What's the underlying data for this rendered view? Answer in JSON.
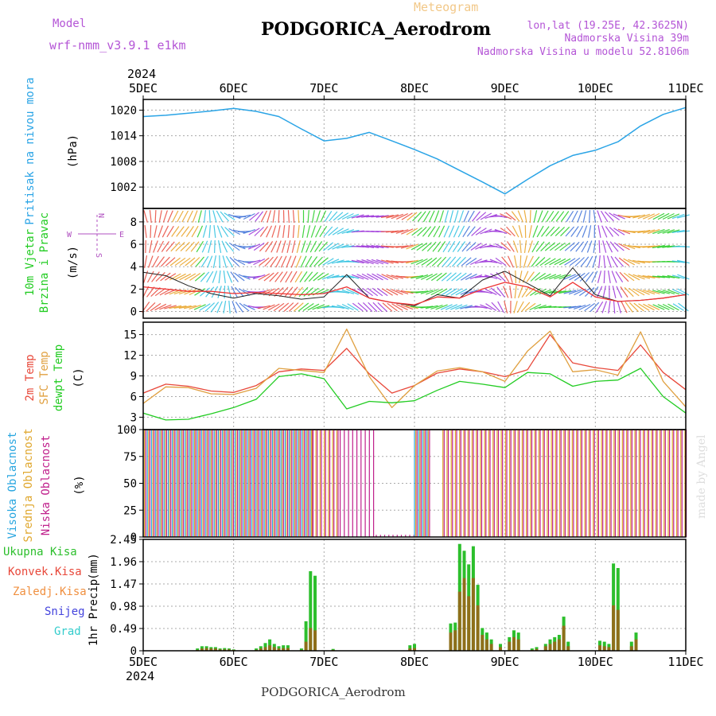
{
  "header": {
    "model_label": "Model",
    "model_name": "wrf-nmm_v3.9.1 e1km",
    "title": "Meteogram",
    "station": "PODGORICA_Aerodrom",
    "location": "lon,lat (19.25E, 42.3625N)",
    "altitude": "Nadmorska Visina 39m",
    "model_altitude": "Nadmorska Visina u modelu 52.8106m",
    "footer_station": "PODGORICA_Aerodrom",
    "credit": "made by Angel"
  },
  "colors": {
    "pressure": "#2aa4e6",
    "temp2m": "#e8483a",
    "sfc": "#e0a040",
    "dewpt": "#22cc22",
    "wind_speed": "#222222",
    "wind_mean": "#ee3333",
    "high_cloud": "#29a6e0",
    "mid_cloud": "#e0a830",
    "low_cloud": "#c0208c",
    "total_precip": "#2cbf2c",
    "conv_precip": "#a06018",
    "purple": "#b455d6",
    "compass": "#b050c0"
  },
  "chart_data": [
    {
      "type": "line",
      "name": "pressure",
      "ylabel": "Pritisak na nivou mora",
      "unit": "(hPa)",
      "yticks": [
        1002,
        1008,
        1014,
        1020
      ],
      "ylim": [
        997,
        1022.5
      ],
      "x_date_labels": [
        "2024",
        "5DEC",
        "6DEC",
        "7DEC",
        "8DEC",
        "9DEC",
        "10DEC",
        "11DEC"
      ],
      "x": [
        0,
        0.25,
        0.5,
        0.75,
        1.0,
        1.25,
        1.5,
        1.75,
        2.0,
        2.25,
        2.5,
        2.75,
        3.0,
        3.25,
        3.5,
        3.75,
        4.0,
        4.25,
        4.5,
        4.75,
        5.0,
        5.25,
        5.5,
        5.75,
        6.0
      ],
      "series": [
        {
          "values": [
            1018.5,
            1018.8,
            1019.3,
            1019.8,
            1020.4,
            1019.7,
            1018.5,
            1015.6,
            1012.8,
            1013.4,
            1014.8,
            1012.8,
            1010.8,
            1008.6,
            1005.9,
            1003.2,
            1000.4,
            1003.8,
            1007.0,
            1009.4,
            1010.6,
            1012.6,
            1016.3,
            1019.0,
            1020.6
          ]
        }
      ]
    },
    {
      "type": "line",
      "name": "wind",
      "ylabel": "10m Vjetar Brzina i Pravac",
      "unit": "(m/s)",
      "compass": {
        "n": "N",
        "s": "S",
        "e": "E",
        "w": "W"
      },
      "yticks": [
        0,
        2,
        4,
        6,
        8
      ],
      "ylim": [
        -0.6,
        9.2
      ],
      "x": [
        0,
        0.25,
        0.5,
        0.75,
        1.0,
        1.25,
        1.5,
        1.75,
        2.0,
        2.25,
        2.5,
        2.75,
        3.0,
        3.25,
        3.5,
        3.75,
        4.0,
        4.25,
        4.5,
        4.75,
        5.0,
        5.25,
        5.5,
        5.75,
        6.0
      ],
      "series": [
        {
          "name": "speed",
          "values": [
            3.5,
            3.2,
            2.3,
            1.6,
            1.2,
            1.6,
            1.4,
            1.1,
            1.3,
            3.3,
            1.2,
            0.8,
            0.5,
            1.5,
            1.2,
            2.8,
            3.6,
            2.5,
            1.4,
            3.9,
            1.5,
            0.9,
            1.0,
            1.2,
            1.5
          ]
        },
        {
          "name": "mean",
          "values": [
            2.2,
            2.0,
            1.8,
            1.8,
            1.6,
            1.7,
            1.6,
            1.5,
            1.6,
            2.2,
            1.2,
            0.8,
            0.6,
            1.3,
            1.2,
            2.0,
            2.6,
            2.2,
            1.3,
            2.6,
            1.3,
            0.9,
            1.0,
            1.2,
            1.5
          ]
        }
      ]
    },
    {
      "type": "line",
      "name": "temperature",
      "legend": [
        "2m Temp",
        "SFC Temp",
        "dewpt Temp"
      ],
      "unit": "(C)",
      "yticks": [
        3,
        6,
        9,
        12,
        15
      ],
      "ylim": [
        1.2,
        16.8
      ],
      "x": [
        0,
        0.25,
        0.5,
        0.75,
        1.0,
        1.25,
        1.5,
        1.75,
        2.0,
        2.25,
        2.5,
        2.75,
        3.0,
        3.25,
        3.5,
        3.75,
        4.0,
        4.25,
        4.5,
        4.75,
        5.0,
        5.25,
        5.5,
        5.75,
        6.0
      ],
      "series": [
        {
          "name": "2m Temp",
          "values": [
            6.5,
            7.8,
            7.5,
            6.8,
            6.6,
            7.6,
            9.6,
            10.0,
            9.8,
            13.0,
            9.3,
            6.5,
            7.6,
            9.4,
            10.0,
            9.6,
            8.9,
            9.9,
            15.0,
            10.9,
            10.2,
            9.8,
            13.5,
            9.5,
            7.0
          ]
        },
        {
          "name": "SFC Temp",
          "values": [
            5.0,
            7.4,
            7.3,
            6.4,
            6.3,
            7.2,
            10.1,
            9.8,
            9.5,
            15.8,
            8.9,
            4.4,
            7.6,
            9.7,
            10.2,
            9.6,
            8.2,
            12.6,
            15.5,
            9.6,
            9.9,
            9.1,
            15.4,
            8.2,
            4.5
          ]
        },
        {
          "name": "dewpt Temp",
          "values": [
            3.6,
            2.6,
            2.7,
            3.5,
            4.4,
            5.6,
            8.9,
            9.3,
            8.6,
            4.2,
            5.3,
            5.1,
            5.4,
            6.9,
            8.2,
            7.8,
            7.3,
            9.5,
            9.3,
            7.5,
            8.2,
            8.4,
            10.1,
            6.0,
            3.6
          ]
        }
      ]
    },
    {
      "type": "bar",
      "name": "cloud",
      "legend": [
        "Visoka Oblacnost",
        "Srednja Oblacnost",
        "Niska Oblacnost"
      ],
      "unit": "(%)",
      "yticks": [
        0,
        25,
        50,
        75,
        100
      ],
      "ylim": [
        0,
        100
      ],
      "segments": [
        {
          "from": 0.0,
          "to": 1.85,
          "value": 100,
          "layers": [
            "high",
            "mid",
            "low"
          ]
        },
        {
          "from": 1.85,
          "to": 2.15,
          "value": 100,
          "layers": [
            "mid",
            "low"
          ]
        },
        {
          "from": 2.15,
          "to": 2.55,
          "value": 100,
          "layers": [
            "low"
          ]
        },
        {
          "from": 2.55,
          "to": 3.0,
          "value": 2,
          "layers": [
            "low"
          ]
        },
        {
          "from": 3.0,
          "to": 3.15,
          "value": 100,
          "layers": [
            "high",
            "mid",
            "low"
          ]
        },
        {
          "from": 3.3,
          "to": 6.0,
          "value": 100,
          "layers": [
            "mid",
            "low"
          ]
        }
      ]
    },
    {
      "type": "bar",
      "name": "precip",
      "legend": [
        "Ukupna Kisa",
        "Konvek.Kisa",
        "Zaledj.Kisa",
        "Snijeg",
        "Grad"
      ],
      "ylabel": "1hr Precip",
      "unit": "(mm)",
      "yticks": [
        0,
        0.49,
        0.98,
        1.47,
        1.96,
        2.45
      ],
      "ylim": [
        0,
        2.45
      ],
      "x_date_labels": [
        "5DEC",
        "6DEC",
        "7DEC",
        "8DEC",
        "9DEC",
        "10DEC",
        "11DEC"
      ],
      "x_year": "2024",
      "bars": [
        {
          "x": 0.6,
          "total": 0.05,
          "conv": 0.02
        },
        {
          "x": 0.65,
          "total": 0.1,
          "conv": 0.05
        },
        {
          "x": 0.7,
          "total": 0.1,
          "conv": 0.06
        },
        {
          "x": 0.75,
          "total": 0.08,
          "conv": 0.05
        },
        {
          "x": 0.8,
          "total": 0.08,
          "conv": 0.05
        },
        {
          "x": 0.85,
          "total": 0.05,
          "conv": 0.03
        },
        {
          "x": 0.9,
          "total": 0.06,
          "conv": 0.03
        },
        {
          "x": 0.95,
          "total": 0.05,
          "conv": 0.03
        },
        {
          "x": 1.0,
          "total": 0.03,
          "conv": 0.02
        },
        {
          "x": 1.25,
          "total": 0.05,
          "conv": 0.02
        },
        {
          "x": 1.3,
          "total": 0.1,
          "conv": 0.05
        },
        {
          "x": 1.35,
          "total": 0.17,
          "conv": 0.08
        },
        {
          "x": 1.4,
          "total": 0.25,
          "conv": 0.12
        },
        {
          "x": 1.45,
          "total": 0.15,
          "conv": 0.08
        },
        {
          "x": 1.5,
          "total": 0.1,
          "conv": 0.05
        },
        {
          "x": 1.55,
          "total": 0.12,
          "conv": 0.06
        },
        {
          "x": 1.6,
          "total": 0.12,
          "conv": 0.06
        },
        {
          "x": 1.75,
          "total": 0.05,
          "conv": 0.02
        },
        {
          "x": 1.8,
          "total": 0.65,
          "conv": 0.2
        },
        {
          "x": 1.85,
          "total": 1.75,
          "conv": 0.5
        },
        {
          "x": 1.9,
          "total": 1.65,
          "conv": 0.45
        },
        {
          "x": 2.1,
          "total": 0.04,
          "conv": 0.02
        },
        {
          "x": 2.95,
          "total": 0.12,
          "conv": 0.05
        },
        {
          "x": 3.0,
          "total": 0.15,
          "conv": 0.06
        },
        {
          "x": 3.4,
          "total": 0.6,
          "conv": 0.4
        },
        {
          "x": 3.45,
          "total": 0.62,
          "conv": 0.45
        },
        {
          "x": 3.5,
          "total": 2.35,
          "conv": 1.3
        },
        {
          "x": 3.55,
          "total": 2.2,
          "conv": 1.6
        },
        {
          "x": 3.6,
          "total": 1.9,
          "conv": 1.2
        },
        {
          "x": 3.65,
          "total": 2.3,
          "conv": 1.6
        },
        {
          "x": 3.7,
          "total": 1.45,
          "conv": 1.0
        },
        {
          "x": 3.75,
          "total": 0.5,
          "conv": 0.35
        },
        {
          "x": 3.8,
          "total": 0.4,
          "conv": 0.25
        },
        {
          "x": 3.85,
          "total": 0.25,
          "conv": 0.15
        },
        {
          "x": 3.95,
          "total": 0.15,
          "conv": 0.08
        },
        {
          "x": 4.05,
          "total": 0.3,
          "conv": 0.2
        },
        {
          "x": 4.1,
          "total": 0.45,
          "conv": 0.3
        },
        {
          "x": 4.15,
          "total": 0.4,
          "conv": 0.25
        },
        {
          "x": 4.3,
          "total": 0.05,
          "conv": 0.02
        },
        {
          "x": 4.35,
          "total": 0.08,
          "conv": 0.04
        },
        {
          "x": 4.45,
          "total": 0.15,
          "conv": 0.1
        },
        {
          "x": 4.5,
          "total": 0.25,
          "conv": 0.15
        },
        {
          "x": 4.55,
          "total": 0.3,
          "conv": 0.2
        },
        {
          "x": 4.6,
          "total": 0.35,
          "conv": 0.25
        },
        {
          "x": 4.65,
          "total": 0.75,
          "conv": 0.55
        },
        {
          "x": 4.7,
          "total": 0.2,
          "conv": 0.1
        },
        {
          "x": 5.05,
          "total": 0.22,
          "conv": 0.12
        },
        {
          "x": 5.1,
          "total": 0.2,
          "conv": 0.1
        },
        {
          "x": 5.15,
          "total": 0.15,
          "conv": 0.08
        },
        {
          "x": 5.2,
          "total": 1.92,
          "conv": 1.0
        },
        {
          "x": 5.25,
          "total": 1.82,
          "conv": 0.9
        },
        {
          "x": 5.4,
          "total": 0.2,
          "conv": 0.1
        },
        {
          "x": 5.45,
          "total": 0.4,
          "conv": 0.25
        }
      ]
    }
  ]
}
